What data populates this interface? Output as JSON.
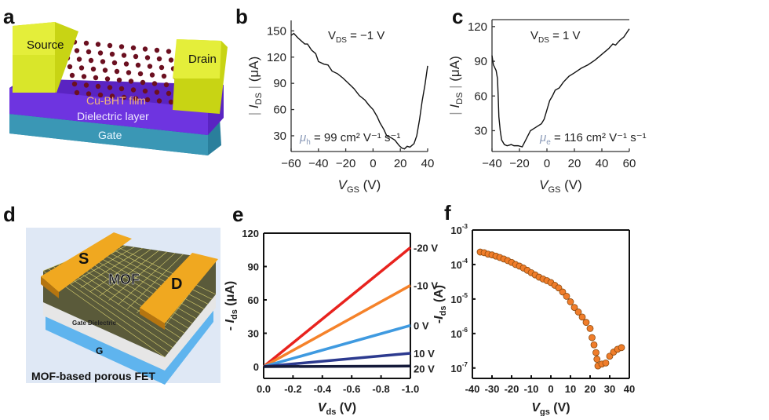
{
  "panel_letters": {
    "a": "a",
    "b": "b",
    "c": "c",
    "d": "d",
    "e": "e",
    "f": "f"
  },
  "diagrams": {
    "a": {
      "source": "Source",
      "drain": "Drain",
      "film": "Cu-BHT film",
      "dielectric": "Dielectric layer",
      "gate": "Gate",
      "colors": {
        "electrode": "#d6e61a",
        "dielectric": "#6a2bd6",
        "gate": "#2f8aa8",
        "film_atoms": "#6b1020"
      }
    },
    "d": {
      "source": "S",
      "drain": "D",
      "mof": "MOF",
      "dielectric": "Gate Dielectric",
      "gate": "G",
      "caption": "MOF-based porous FET",
      "colors": {
        "electrode": "#f0a820",
        "gate": "#5fb4ee",
        "dielectric": "#e4e4e4",
        "background": "#dfe8f5"
      }
    }
  },
  "chart_data": [
    {
      "id": "b",
      "type": "line",
      "xlabel": {
        "main": "V",
        "sub": "GS",
        "unit": " (V)"
      },
      "ylabel": {
        "main": "I",
        "sub": "DS",
        "unit": " (μA)"
      },
      "xlim": [
        -60,
        40
      ],
      "ylim": [
        12,
        162
      ],
      "xticks": [
        -60,
        -40,
        -20,
        0,
        20,
        40
      ],
      "xticklabels": [
        "−60",
        "−40",
        "−20",
        "0",
        "20",
        "40"
      ],
      "yticks": [
        30,
        60,
        90,
        120,
        150
      ],
      "yticklabels": [
        "30",
        "60",
        "90",
        "120",
        "150"
      ],
      "annotations": {
        "vds": {
          "main": "V",
          "sub": "DS",
          "rest": " = −1 V"
        },
        "mobility": {
          "main": "μ",
          "sub": "h",
          "rest": " = 99 cm² V⁻¹ s⁻¹"
        }
      },
      "color": "#111111",
      "x": [
        -60,
        -58,
        -55,
        -50,
        -48,
        -45,
        -42,
        -40,
        -36,
        -33,
        -30,
        -26,
        -22,
        -18,
        -14,
        -10,
        -6,
        -3,
        0,
        3,
        5,
        8,
        10,
        13,
        16,
        19,
        21,
        23,
        25,
        27,
        30,
        32,
        34,
        36,
        38,
        40
      ],
      "y": [
        145,
        147,
        142,
        135,
        135,
        128,
        124,
        115,
        112,
        111,
        104,
        101,
        96,
        90,
        84,
        76,
        71,
        65,
        60,
        52,
        45,
        37,
        30,
        28,
        25,
        19,
        16,
        15,
        18,
        17,
        21,
        30,
        48,
        70,
        88,
        110
      ]
    },
    {
      "id": "c",
      "type": "line",
      "xlabel": {
        "main": "V",
        "sub": "GS",
        "unit": " (V)"
      },
      "ylabel": {
        "main": "I",
        "sub": "DS",
        "unit": " (μA)"
      },
      "xlim": [
        -40,
        60
      ],
      "ylim": [
        12,
        126
      ],
      "xticks": [
        -40,
        -20,
        0,
        20,
        40,
        60
      ],
      "xticklabels": [
        "−40",
        "−20",
        "0",
        "20",
        "40",
        "60"
      ],
      "yticks": [
        30,
        60,
        90,
        120
      ],
      "yticklabels": [
        "30",
        "60",
        "90",
        "120"
      ],
      "annotations": {
        "vds": {
          "main": "V",
          "sub": "DS",
          "rest": " = 1 V"
        },
        "mobility": {
          "main": "μ",
          "sub": "e",
          "rest": " = 116 cm² V⁻¹ s⁻¹"
        }
      },
      "color": "#111111",
      "x": [
        -40,
        -39,
        -37,
        -36,
        -35.5,
        -35,
        -34,
        -33,
        -31,
        -29,
        -26,
        -24,
        -21,
        -18,
        -15,
        -12,
        -8,
        -4,
        -2,
        0,
        2,
        4,
        6,
        9,
        12,
        16,
        20,
        25,
        30,
        35,
        40,
        45,
        48,
        50,
        53,
        56,
        60
      ],
      "y": [
        95,
        87,
        82,
        75,
        60,
        42,
        30,
        22,
        18,
        17,
        18,
        17,
        17,
        16,
        23,
        30,
        33,
        36,
        40,
        48,
        56,
        60,
        65,
        67,
        72,
        77,
        80,
        84,
        87,
        91,
        96,
        101,
        105,
        104,
        108,
        111,
        118
      ]
    },
    {
      "id": "e",
      "type": "line",
      "xlabel": {
        "main": "V",
        "sub": "ds",
        "unit": " (V)"
      },
      "ylabel": {
        "prefix": "- ",
        "main": "I",
        "sub": "ds",
        "unit": " (μA)"
      },
      "xlim": [
        0,
        -1.0
      ],
      "ylim": [
        -10.6,
        120
      ],
      "xticks": [
        0,
        -0.2,
        -0.4,
        -0.6,
        -0.8,
        -1.0
      ],
      "xticklabels": [
        "0.0",
        "-0.2",
        "-0.4",
        "-0.6",
        "-0.8",
        "-1.0"
      ],
      "yticks": [
        0,
        30,
        60,
        90,
        120
      ],
      "yticklabels": [
        "0",
        "30",
        "60",
        "90",
        "120"
      ],
      "x": [
        0,
        -1.0
      ],
      "series": [
        {
          "name": "-20 V",
          "color": "#e8231e",
          "values": [
            0,
            107
          ]
        },
        {
          "name": "-10 V",
          "color": "#f5822a",
          "values": [
            0,
            73
          ]
        },
        {
          "name": "0 V",
          "color": "#3f9ae0",
          "values": [
            0,
            37
          ]
        },
        {
          "name": "10 V",
          "color": "#2c3a8f",
          "values": [
            0,
            12
          ]
        },
        {
          "name": "20 V",
          "color": "#141a3a",
          "values": [
            0,
            0.5
          ]
        }
      ]
    },
    {
      "id": "f",
      "type": "scatter",
      "yscale": "log",
      "xlabel": {
        "main": "V",
        "sub": "gs",
        "unit": " (V)"
      },
      "ylabel": {
        "prefix": "-",
        "main": "I",
        "sub": "ds",
        "unit": " (A)"
      },
      "xlim": [
        -40,
        40
      ],
      "ylim": [
        5e-08,
        0.001
      ],
      "xticks": [
        -40,
        -30,
        -20,
        -10,
        0,
        10,
        20,
        30,
        40
      ],
      "xticklabels": [
        "-40",
        "-30",
        "-20",
        "-10",
        "0",
        "10",
        "20",
        "30",
        "40"
      ],
      "yticks": [
        0.001,
        0.0001,
        1e-05,
        1e-06,
        1e-07
      ],
      "yticklabels": [
        {
          "base": "10",
          "exp": "-3"
        },
        {
          "base": "10",
          "exp": "-4"
        },
        {
          "base": "10",
          "exp": "-5"
        },
        {
          "base": "10",
          "exp": "-6"
        },
        {
          "base": "10",
          "exp": "-7"
        }
      ],
      "color": "#f07d2a",
      "edge": "#8a4a10",
      "x": [
        -36,
        -34,
        -32,
        -30,
        -28,
        -26,
        -24,
        -22,
        -20,
        -18,
        -16,
        -14,
        -12,
        -10,
        -8,
        -6,
        -4,
        -2,
        0,
        2,
        4,
        6,
        8,
        10,
        12,
        14,
        16,
        18,
        20,
        21,
        22,
        23,
        23.5,
        24,
        26,
        28,
        30,
        32,
        34,
        36
      ],
      "y": [
        0.00023,
        0.00022,
        0.0002,
        0.00019,
        0.000175,
        0.00016,
        0.000145,
        0.00013,
        0.000115,
        0.0001,
        9e-05,
        7.9e-05,
        6.8e-05,
        5.8e-05,
        5e-05,
        4.3e-05,
        3.8e-05,
        3.4e-05,
        3e-05,
        2.5e-05,
        2.1e-05,
        1.6e-05,
        1.2e-05,
        8.3e-06,
        5.7e-06,
        4.2e-06,
        3e-06,
        2.1e-06,
        1.4e-06,
        7.6e-07,
        4.7e-07,
        2.8e-07,
        1.8e-07,
        1.15e-07,
        1.3e-07,
        1.4e-07,
        2.2e-07,
        2.9e-07,
        3.5e-07,
        3.9e-07
      ]
    }
  ]
}
